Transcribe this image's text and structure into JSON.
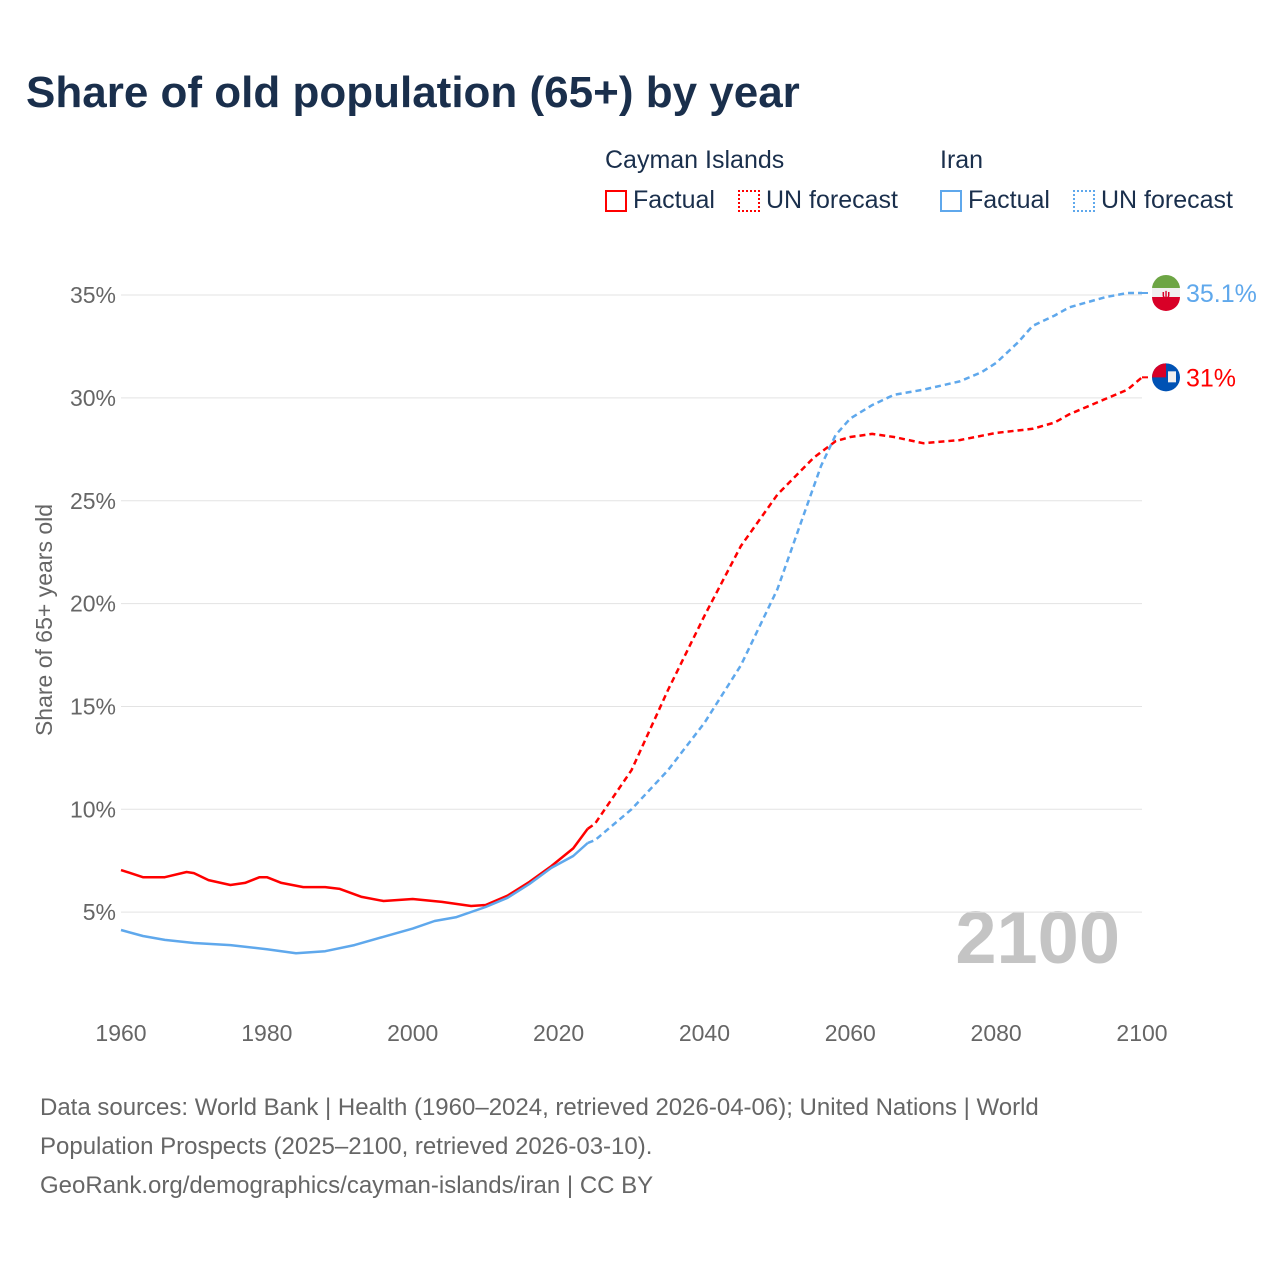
{
  "chart_data": {
    "type": "line",
    "title": "Share of old population (65+) by year",
    "ylabel": "Share of 65+ years old",
    "xlabel": "",
    "xlim": [
      1960,
      2100
    ],
    "ylim": [
      0,
      35
    ],
    "x_ticks": [
      "1960",
      "1980",
      "2000",
      "2020",
      "2040",
      "2060",
      "2080",
      "2100"
    ],
    "y_ticks": [
      {
        "v": 5,
        "label": "5%"
      },
      {
        "v": 10,
        "label": "10%"
      },
      {
        "v": 15,
        "label": "15%"
      },
      {
        "v": 20,
        "label": "20%"
      },
      {
        "v": 25,
        "label": "25%"
      },
      {
        "v": 30,
        "label": "30%"
      },
      {
        "v": 35,
        "label": "35%"
      }
    ],
    "grid": true,
    "year_watermark": "2100",
    "legend": {
      "groups": [
        {
          "name": "Cayman Islands",
          "color": "#ff0000",
          "items": [
            "Factual",
            "UN forecast"
          ]
        },
        {
          "name": "Iran",
          "color": "#5fa8ec",
          "items": [
            "Factual",
            "UN forecast"
          ]
        }
      ]
    },
    "series": [
      {
        "name": "Cayman Islands – Factual",
        "color": "#ff0000",
        "style": "solid",
        "points": [
          [
            1960,
            7.05
          ],
          [
            1963,
            6.7
          ],
          [
            1966,
            6.7
          ],
          [
            1969,
            6.95
          ],
          [
            1970,
            6.9
          ],
          [
            1972,
            6.56
          ],
          [
            1975,
            6.32
          ],
          [
            1977,
            6.42
          ],
          [
            1979,
            6.7
          ],
          [
            1980,
            6.7
          ],
          [
            1982,
            6.42
          ],
          [
            1985,
            6.22
          ],
          [
            1988,
            6.22
          ],
          [
            1990,
            6.13
          ],
          [
            1993,
            5.74
          ],
          [
            1996,
            5.54
          ],
          [
            2000,
            5.64
          ],
          [
            2004,
            5.5
          ],
          [
            2008,
            5.3
          ],
          [
            2010,
            5.35
          ],
          [
            2013,
            5.8
          ],
          [
            2016,
            6.47
          ],
          [
            2019,
            7.24
          ],
          [
            2022,
            8.1
          ],
          [
            2024,
            9.05
          ]
        ]
      },
      {
        "name": "Cayman Islands – UN forecast",
        "color": "#ff0000",
        "style": "dashed",
        "points": [
          [
            2024,
            9.05
          ],
          [
            2025,
            9.3
          ],
          [
            2030,
            11.9
          ],
          [
            2035,
            15.8
          ],
          [
            2040,
            19.4
          ],
          [
            2045,
            22.8
          ],
          [
            2050,
            25.3
          ],
          [
            2055,
            27.1
          ],
          [
            2058,
            27.9
          ],
          [
            2060,
            28.1
          ],
          [
            2063,
            28.25
          ],
          [
            2066,
            28.1
          ],
          [
            2070,
            27.8
          ],
          [
            2075,
            27.95
          ],
          [
            2080,
            28.3
          ],
          [
            2085,
            28.5
          ],
          [
            2088,
            28.8
          ],
          [
            2090,
            29.2
          ],
          [
            2093,
            29.65
          ],
          [
            2095,
            29.95
          ],
          [
            2098,
            30.4
          ],
          [
            2100,
            31.0
          ]
        ]
      },
      {
        "name": "Iran – Factual",
        "color": "#5fa8ec",
        "style": "solid",
        "points": [
          [
            1960,
            4.13
          ],
          [
            1963,
            3.84
          ],
          [
            1966,
            3.65
          ],
          [
            1970,
            3.5
          ],
          [
            1975,
            3.4
          ],
          [
            1980,
            3.2
          ],
          [
            1984,
            3.0
          ],
          [
            1988,
            3.1
          ],
          [
            1992,
            3.4
          ],
          [
            1996,
            3.8
          ],
          [
            2000,
            4.2
          ],
          [
            2003,
            4.57
          ],
          [
            2006,
            4.76
          ],
          [
            2010,
            5.25
          ],
          [
            2013,
            5.7
          ],
          [
            2016,
            6.37
          ],
          [
            2019,
            7.15
          ],
          [
            2022,
            7.73
          ],
          [
            2024,
            8.36
          ]
        ]
      },
      {
        "name": "Iran – UN forecast",
        "color": "#5fa8ec",
        "style": "dashed",
        "points": [
          [
            2024,
            8.36
          ],
          [
            2025,
            8.5
          ],
          [
            2030,
            10.0
          ],
          [
            2035,
            11.9
          ],
          [
            2040,
            14.2
          ],
          [
            2045,
            17.0
          ],
          [
            2050,
            20.7
          ],
          [
            2053,
            23.7
          ],
          [
            2056,
            26.7
          ],
          [
            2058,
            28.2
          ],
          [
            2060,
            29.0
          ],
          [
            2063,
            29.65
          ],
          [
            2066,
            30.15
          ],
          [
            2070,
            30.4
          ],
          [
            2075,
            30.8
          ],
          [
            2078,
            31.25
          ],
          [
            2080,
            31.7
          ],
          [
            2083,
            32.7
          ],
          [
            2085,
            33.5
          ],
          [
            2088,
            34.0
          ],
          [
            2090,
            34.4
          ],
          [
            2095,
            34.9
          ],
          [
            2098,
            35.1
          ],
          [
            2100,
            35.1
          ]
        ]
      }
    ],
    "end_labels": [
      {
        "country": "Iran",
        "label": "35.1%",
        "value": 35.1,
        "color": "#5fa8ec"
      },
      {
        "country": "Cayman Islands",
        "label": "31%",
        "value": 31.0,
        "color": "#ff0000"
      }
    ]
  },
  "footer": {
    "line1": "Data sources: World Bank | Health (1960–2024, retrieved 2026-04-06); United Nations | World",
    "line2": "Population Prospects (2025–2100, retrieved 2026-03-10).",
    "line3": "GeoRank.org/demographics/cayman-islands/iran | CC BY"
  }
}
